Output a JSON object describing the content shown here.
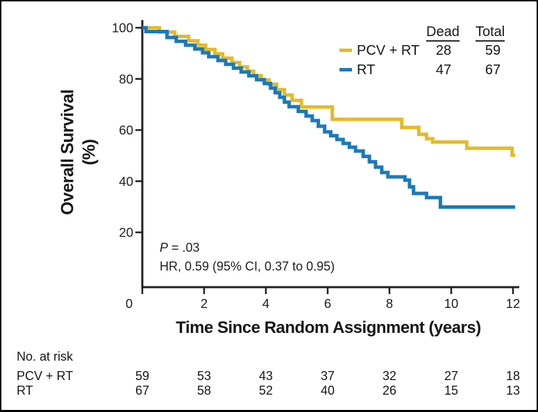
{
  "colors": {
    "axis": "#231f20",
    "text": "#1e1e1e",
    "pcv_rt": "#E3BB28",
    "rt": "#1B79B9",
    "background": "#ffffff"
  },
  "chart_data": {
    "type": "line",
    "subtype": "kaplan-meier-step",
    "title": "",
    "xlabel": "Time Since Random Assignment (years)",
    "ylabel": "Overall Survival (%)",
    "ylabel_line1": "Overall Survival",
    "ylabel_line2": "(%)",
    "xlim": [
      0,
      12.2
    ],
    "ylim": [
      0,
      100
    ],
    "x_ticks": [
      0,
      2,
      4,
      6,
      8,
      10,
      12
    ],
    "y_ticks": [
      100,
      80,
      60,
      40,
      20
    ],
    "grid": false,
    "legend_position": "top-right",
    "legend_columns": [
      "Dead",
      "Total"
    ],
    "series": [
      {
        "name": "PCV + RT",
        "color": "#E3BB28",
        "dead": "28",
        "total": "59",
        "end_x": 12.07,
        "steps": [
          [
            0,
            100
          ],
          [
            0.55,
            98.3
          ],
          [
            1.05,
            96.6
          ],
          [
            1.5,
            94.9
          ],
          [
            1.8,
            93.2
          ],
          [
            2.05,
            91.5
          ],
          [
            2.35,
            89.8
          ],
          [
            2.6,
            88.1
          ],
          [
            2.9,
            86.4
          ],
          [
            3.15,
            84.7
          ],
          [
            3.4,
            83.0
          ],
          [
            3.6,
            81.3
          ],
          [
            3.85,
            79.6
          ],
          [
            4.1,
            77.9
          ],
          [
            4.35,
            75.8
          ],
          [
            4.6,
            73.7
          ],
          [
            4.85,
            71.6
          ],
          [
            5.15,
            69.0
          ],
          [
            6.15,
            64.2
          ],
          [
            8.4,
            61.0
          ],
          [
            8.95,
            58.3
          ],
          [
            9.2,
            56.6
          ],
          [
            9.4,
            55.3
          ],
          [
            10.5,
            52.9
          ],
          [
            11.97,
            50.2
          ]
        ]
      },
      {
        "name": "RT",
        "color": "#1B79B9",
        "dead": "47",
        "total": "67",
        "end_x": 12.07,
        "steps": [
          [
            0,
            100
          ],
          [
            0.12,
            98.5
          ],
          [
            0.8,
            96.2
          ],
          [
            1.1,
            94.7
          ],
          [
            1.4,
            93.2
          ],
          [
            1.7,
            91.7
          ],
          [
            1.95,
            90.2
          ],
          [
            2.15,
            88.7
          ],
          [
            2.45,
            87.2
          ],
          [
            2.7,
            85.7
          ],
          [
            2.95,
            84.2
          ],
          [
            3.2,
            82.7
          ],
          [
            3.45,
            81.2
          ],
          [
            3.7,
            79.7
          ],
          [
            3.95,
            78.2
          ],
          [
            4.15,
            76.4
          ],
          [
            4.3,
            74.6
          ],
          [
            4.45,
            72.8
          ],
          [
            4.6,
            70.9
          ],
          [
            4.75,
            69.1
          ],
          [
            5.05,
            67.3
          ],
          [
            5.3,
            65.5
          ],
          [
            5.5,
            63.7
          ],
          [
            5.7,
            61.5
          ],
          [
            5.9,
            59.3
          ],
          [
            6.1,
            57.8
          ],
          [
            6.3,
            56.3
          ],
          [
            6.5,
            54.8
          ],
          [
            6.7,
            53.3
          ],
          [
            6.9,
            51.8
          ],
          [
            7.15,
            49.7
          ],
          [
            7.35,
            47.6
          ],
          [
            7.55,
            45.5
          ],
          [
            7.75,
            43.4
          ],
          [
            7.95,
            41.7
          ],
          [
            8.5,
            40.4
          ],
          [
            8.65,
            37.8
          ],
          [
            8.78,
            35.2
          ],
          [
            9.2,
            33.6
          ],
          [
            9.65,
            29.9
          ]
        ]
      }
    ],
    "annotation": {
      "p_italic": "P",
      "p_rest": " = .03",
      "hr": "HR, 0.59 (95% CI, 0.37 to 0.95)"
    },
    "no_at_risk": {
      "title": "No. at risk",
      "rows": [
        {
          "label": "PCV + RT",
          "counts": [
            "59",
            "53",
            "43",
            "37",
            "32",
            "27",
            "18"
          ]
        },
        {
          "label": "RT",
          "counts": [
            "67",
            "58",
            "52",
            "40",
            "26",
            "15",
            "13"
          ]
        }
      ]
    }
  }
}
